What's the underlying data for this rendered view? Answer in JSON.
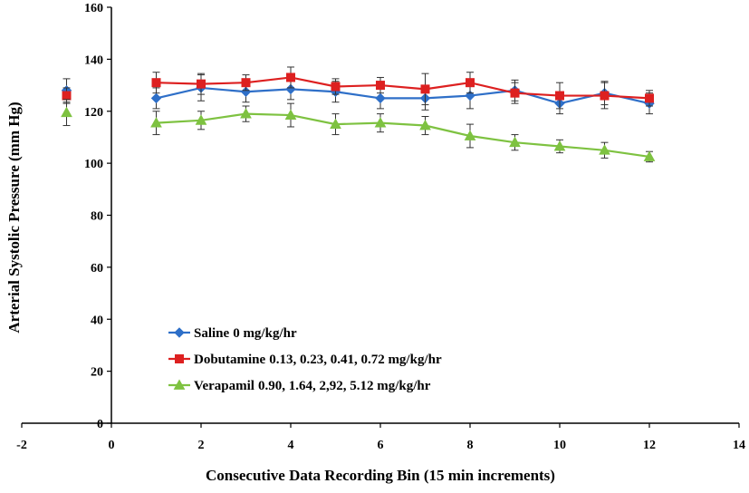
{
  "chart_data": {
    "type": "line",
    "title": "",
    "xlabel": "Consecutive Data Recording Bin (15 min increments)",
    "ylabel": "Arterial Systolic Pressure (mm Hg)",
    "xlim": [
      -2,
      14
    ],
    "ylim": [
      0,
      160
    ],
    "xticks": [
      -2,
      0,
      2,
      4,
      6,
      8,
      10,
      12,
      14
    ],
    "yticks": [
      0,
      20,
      40,
      60,
      80,
      100,
      120,
      140,
      160
    ],
    "grid": false,
    "legend_position": "lower-left",
    "series": [
      {
        "name": "Saline",
        "legend_desc": "0 mg/kg/hr",
        "color": "#2E6FC8",
        "marker": "diamond",
        "baseline": {
          "x": -1,
          "y": 128,
          "err": 4.5
        },
        "x": [
          1,
          2,
          3,
          4,
          5,
          6,
          7,
          8,
          9,
          10,
          11,
          12
        ],
        "y": [
          125,
          129,
          127.5,
          128.5,
          127.5,
          125,
          125,
          126,
          128,
          123,
          127,
          123
        ],
        "err": [
          4,
          5,
          4,
          4,
          4,
          4,
          4.5,
          5,
          4,
          4,
          4.5,
          4
        ]
      },
      {
        "name": "Dobutamine",
        "legend_desc": "0.13, 0.23, 0.41, 0.72 mg/kg/hr",
        "color": "#DD2020",
        "marker": "square",
        "baseline": {
          "x": -1,
          "y": 126,
          "err": 3
        },
        "x": [
          1,
          2,
          3,
          4,
          5,
          6,
          7,
          8,
          9,
          10,
          11,
          12
        ],
        "y": [
          131,
          130.5,
          131,
          133,
          129.5,
          130,
          128.5,
          131,
          127,
          126,
          126,
          125
        ],
        "err": [
          4,
          4,
          3,
          4,
          3,
          3,
          6,
          4,
          4,
          5,
          5,
          3
        ]
      },
      {
        "name": "Verapamil",
        "legend_desc": "0.90, 1.64, 2,92, 5.12 mg/kg/hr",
        "color": "#7EC241",
        "marker": "triangle",
        "baseline": {
          "x": -1,
          "y": 119.5,
          "err": 5
        },
        "x": [
          1,
          2,
          3,
          4,
          5,
          6,
          7,
          8,
          9,
          10,
          11,
          12
        ],
        "y": [
          115.5,
          116.5,
          119,
          118.5,
          115,
          115.5,
          114.5,
          110.5,
          108,
          106.5,
          105,
          102.5
        ],
        "err": [
          4.5,
          3.5,
          3,
          4.5,
          4,
          3.5,
          3.5,
          4.5,
          3,
          2.5,
          3,
          2
        ]
      }
    ]
  }
}
